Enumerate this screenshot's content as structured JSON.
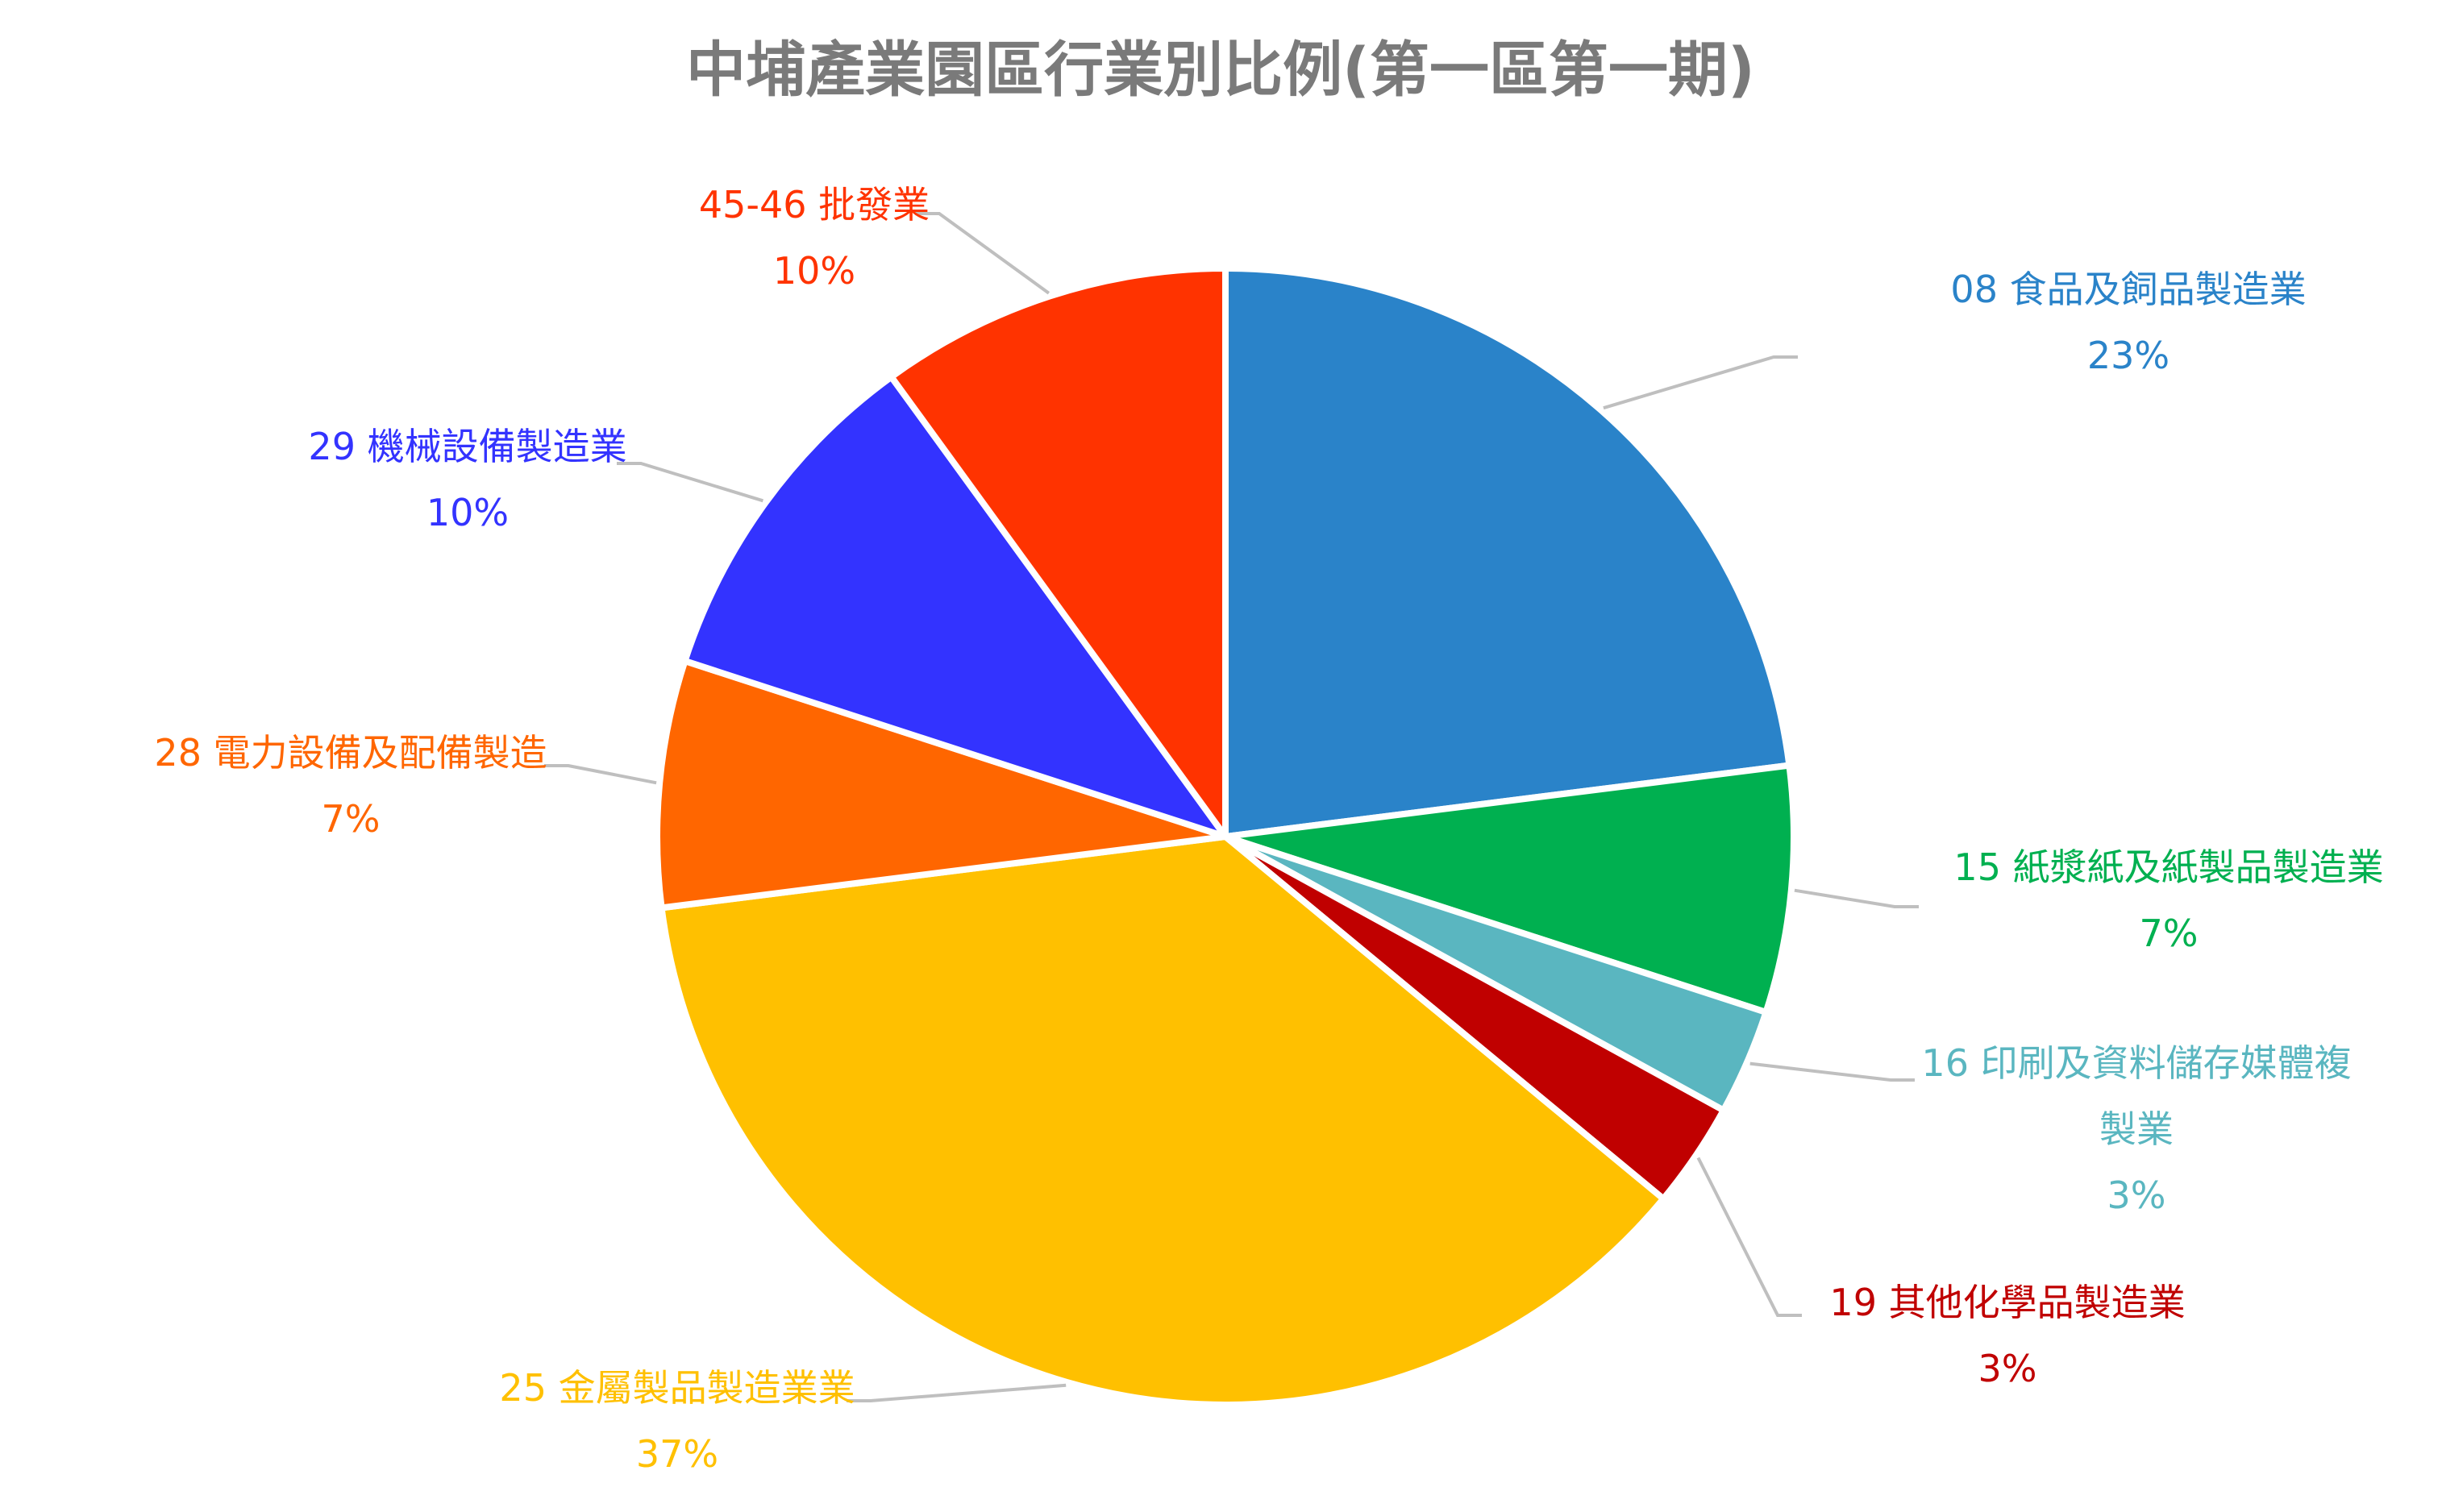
{
  "chart_data": {
    "type": "pie",
    "title": "中埔產業園區行業別比例(第一區第一期)",
    "slices": [
      {
        "name": "08 食品及飼品製造業",
        "value": 23,
        "label": "23%",
        "color": "#2a83c9",
        "label_lines": [
          "08 食品及飼品製造業"
        ]
      },
      {
        "name": "15 紙漿紙及紙製品製造業",
        "value": 7,
        "label": "7%",
        "color": "#00b050",
        "label_lines": [
          "15 紙漿紙及紙製品製造業"
        ]
      },
      {
        "name": "16 印刷及資料儲存媒體複製業",
        "value": 3,
        "label": "3%",
        "color": "#5ab6c0",
        "label_lines": [
          "16 印刷及資料儲存媒體複",
          "製業"
        ]
      },
      {
        "name": "19 其他化學品製造業",
        "value": 3,
        "label": "3%",
        "color": "#c00000",
        "label_lines": [
          "19 其他化學品製造業"
        ]
      },
      {
        "name": "25 金屬製品製造業業",
        "value": 37,
        "label": "37%",
        "color": "#ffc000",
        "label_lines": [
          "25 金屬製品製造業業"
        ]
      },
      {
        "name": "28 電力設備及配備製造",
        "value": 7,
        "label": "7%",
        "color": "#ff6600",
        "label_lines": [
          "28 電力設備及配備製造"
        ]
      },
      {
        "name": "29 機械設備製造業",
        "value": 10,
        "label": "10%",
        "color": "#3333ff",
        "label_lines": [
          "29 機械設備製造業"
        ]
      },
      {
        "name": "45-46 批發業",
        "value": 10,
        "label": "10%",
        "color": "#ff3300",
        "label_lines": [
          "45-46 批發業"
        ]
      }
    ],
    "start_angle": "12 o'clock",
    "direction": "clockwise",
    "legend": "none",
    "data_labels": "outside with leader lines"
  }
}
